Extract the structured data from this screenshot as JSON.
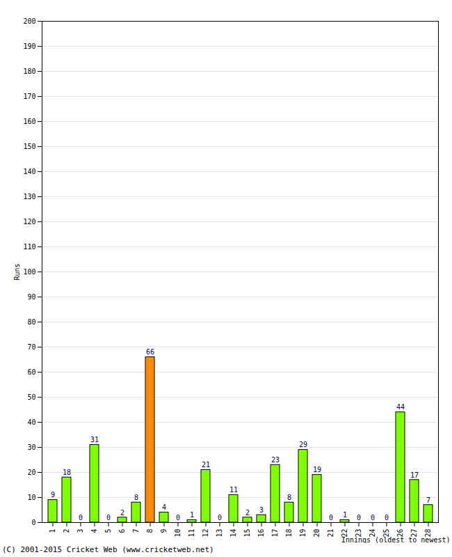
{
  "chart_data": {
    "type": "bar",
    "caption": "(C) 2001-2015 Cricket Web (www.cricketweb.net)",
    "x_label": "Innings (oldest to newest)",
    "y_label": "Runs",
    "categories": [
      "1",
      "2",
      "3",
      "4",
      "5",
      "6",
      "7",
      "8",
      "9",
      "10",
      "11",
      "12",
      "13",
      "14",
      "15",
      "16",
      "17",
      "18",
      "19",
      "20",
      "21",
      "22",
      "23",
      "24",
      "25",
      "26",
      "27",
      "28"
    ],
    "values": [
      9,
      18,
      0,
      31,
      0,
      2,
      8,
      66,
      4,
      0,
      1,
      21,
      0,
      11,
      2,
      3,
      23,
      8,
      29,
      19,
      0,
      1,
      0,
      0,
      0,
      44,
      17,
      7
    ],
    "colors": [
      "#80ff00",
      "#80ff00",
      "#80ff00",
      "#80ff00",
      "#80ff00",
      "#80ff00",
      "#80ff00",
      "#ff8c00",
      "#80ff00",
      "#80ff00",
      "#80ff00",
      "#80ff00",
      "#80ff00",
      "#80ff00",
      "#80ff00",
      "#80ff00",
      "#80ff00",
      "#80ff00",
      "#80ff00",
      "#80ff00",
      "#80ff00",
      "#80ff00",
      "#80ff00",
      "#80ff00",
      "#80ff00",
      "#80ff00",
      "#80ff00",
      "#80ff00"
    ],
    "ylim": [
      0,
      200
    ],
    "yticks": [
      0,
      10,
      20,
      30,
      40,
      50,
      60,
      70,
      80,
      90,
      100,
      110,
      120,
      130,
      140,
      150,
      160,
      170,
      180,
      190,
      200
    ],
    "grid": true,
    "data_labels": true
  }
}
